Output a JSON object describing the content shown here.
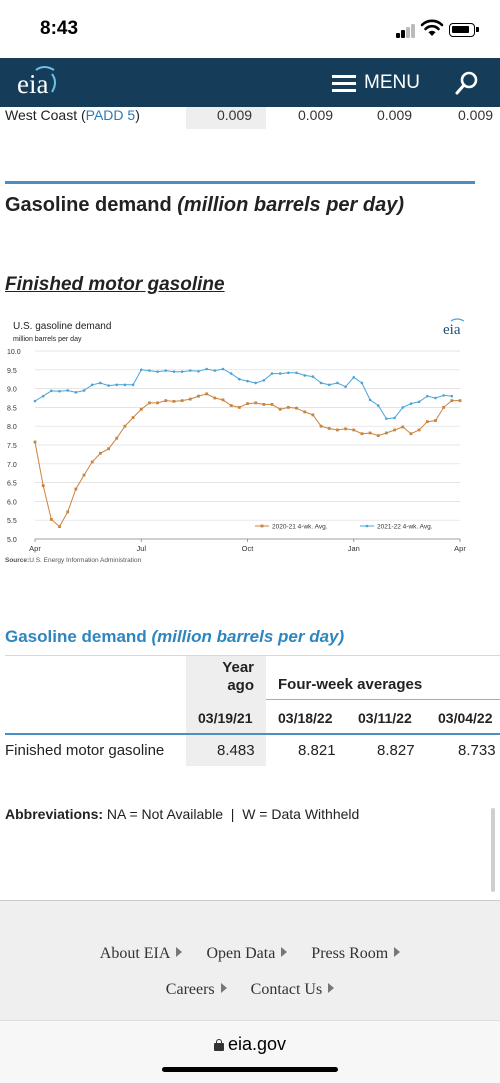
{
  "status_bar": {
    "time": "8:43"
  },
  "header": {
    "logo_text": "eia",
    "menu_label": "MENU"
  },
  "prev_table_row": {
    "label_prefix": "West Coast (",
    "label_link": "PADD 5",
    "label_suffix": ")",
    "values": [
      "0.009",
      "0.009",
      "0.009",
      "0.009"
    ]
  },
  "section": {
    "title": "Gasoline demand ",
    "title_unit": "(million barrels per day)",
    "subtitle": "Finished motor gasoline"
  },
  "chart_data": {
    "type": "line",
    "title": "U.S. gasoline demand",
    "subtitle": "million barrels per day",
    "logo_text": "eia",
    "ylim": [
      5.0,
      10.0
    ],
    "y_ticks": [
      "10.0",
      "9.5",
      "9.0",
      "8.5",
      "8.0",
      "7.5",
      "7.0",
      "6.5",
      "6.0",
      "5.5",
      "5.0"
    ],
    "x_ticks": [
      "Apr",
      "Jul",
      "Oct",
      "Jan",
      "Apr"
    ],
    "grid": true,
    "legend_position": "bottom-right",
    "source_label": "Source:",
    "source_text": "U.S. Energy Information Administration",
    "series": [
      {
        "name": "2020-21",
        "legend_suffix": "4-wk. Avg.",
        "color": "#c9843f",
        "values": [
          7.58,
          6.42,
          5.52,
          5.33,
          5.72,
          6.33,
          6.7,
          7.05,
          7.28,
          7.4,
          7.68,
          8.0,
          8.23,
          8.45,
          8.62,
          8.62,
          8.68,
          8.66,
          8.68,
          8.72,
          8.8,
          8.86,
          8.75,
          8.7,
          8.55,
          8.5,
          8.6,
          8.62,
          8.58,
          8.58,
          8.45,
          8.5,
          8.48,
          8.38,
          8.3,
          8.0,
          7.94,
          7.9,
          7.93,
          7.9,
          7.8,
          7.82,
          7.75,
          7.82,
          7.9,
          7.98,
          7.8,
          7.9,
          8.12,
          8.15,
          8.5,
          8.68,
          8.68
        ]
      },
      {
        "name": "2021-22",
        "legend_suffix": "4-wk. Avg.",
        "color": "#4aa3d9",
        "values": [
          8.67,
          8.8,
          8.94,
          8.93,
          8.95,
          8.9,
          8.95,
          9.1,
          9.15,
          9.08,
          9.1,
          9.1,
          9.1,
          9.5,
          9.48,
          9.45,
          9.48,
          9.45,
          9.45,
          9.48,
          9.46,
          9.52,
          9.48,
          9.52,
          9.4,
          9.25,
          9.2,
          9.15,
          9.22,
          9.4,
          9.4,
          9.42,
          9.42,
          9.35,
          9.32,
          9.15,
          9.1,
          9.15,
          9.05,
          9.3,
          9.15,
          8.7,
          8.55,
          8.2,
          8.22,
          8.5,
          8.6,
          8.65,
          8.8,
          8.75,
          8.82,
          8.8
        ]
      }
    ]
  },
  "table2": {
    "title": "Gasoline demand ",
    "title_unit": "(million barrels per day)",
    "year_ago_line1": "Year",
    "year_ago_line2": "ago",
    "four_week_label": "Four-week averages",
    "dates": [
      "03/19/21",
      "03/18/22",
      "03/11/22",
      "03/04/22"
    ],
    "row_label": "Finished motor gasoline",
    "row_values": [
      "8.483",
      "8.821",
      "8.827",
      "8.733"
    ]
  },
  "abbreviations": {
    "label": "Abbreviations:",
    "text": " NA = Not Available  |  W = Data Withheld"
  },
  "footer": {
    "row1": [
      "About EIA",
      "Open Data",
      "Press Room"
    ],
    "row2": [
      "Careers",
      "Contact Us"
    ]
  },
  "url_bar": {
    "domain": "eia.gov"
  }
}
